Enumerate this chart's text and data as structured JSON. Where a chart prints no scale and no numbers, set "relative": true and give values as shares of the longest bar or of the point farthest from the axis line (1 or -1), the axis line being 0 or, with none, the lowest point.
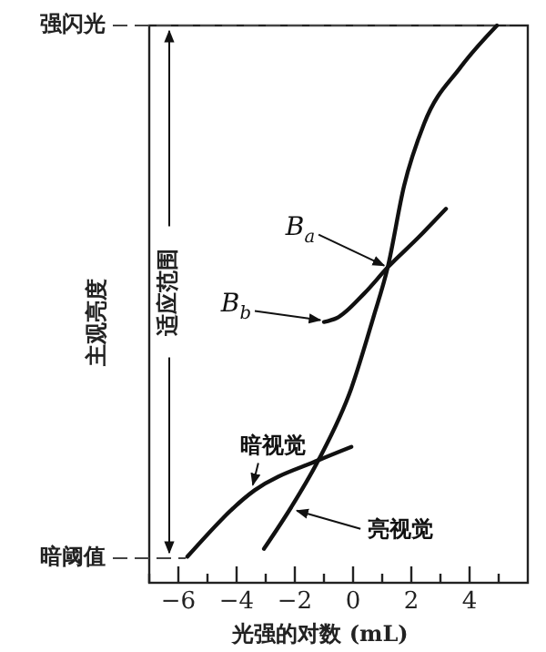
{
  "chart_data": {
    "type": "line",
    "relative": true,
    "xlabel": "光强的对数 (mL)",
    "ylabel": "主观亮度",
    "tick_labels": "x",
    "xlim": [
      -7,
      6
    ],
    "xticks": [
      {
        "value": -7,
        "label": null
      },
      -6,
      {
        "value": -5,
        "label": null
      },
      -4,
      {
        "value": -3,
        "label": null
      },
      -2,
      {
        "value": -1,
        "label": null
      },
      0,
      {
        "value": 1,
        "label": null
      },
      2,
      {
        "value": 3,
        "label": null
      },
      4,
      {
        "value": 5,
        "label": null
      }
    ],
    "series": [
      {
        "name": "亮视觉",
        "color": "#111111",
        "x": [
          -3.06,
          -2.12,
          -1.19,
          -0.06,
          0.69,
          1.19,
          1.75,
          2.44,
          3.69,
          4.94
        ],
        "values": [
          0.061,
          0.136,
          0.22,
          0.349,
          0.475,
          0.566,
          0.712,
          0.824,
          0.925,
          1.0
        ]
      },
      {
        "color": "#111111",
        "x": [
          -1.0,
          -0.56,
          0.38,
          1.19,
          2.25,
          3.19
        ],
        "values": [
          0.468,
          0.475,
          0.519,
          0.566,
          0.62,
          0.671
        ]
      },
      {
        "name": "暗视觉",
        "color": "#111111",
        "x": [
          -5.69,
          -3.38,
          -1.19,
          -0.06
        ],
        "values": [
          0.047,
          0.166,
          0.22,
          0.244
        ]
      }
    ],
    "ref_lines": [
      {
        "axis": "y",
        "value": 1.0,
        "label": "强闪光",
        "line_style": "dashed"
      },
      {
        "axis": "y",
        "value": 0.044,
        "label": "暗阈值",
        "line_style": "dashed"
      }
    ],
    "annotations": [
      {
        "text": "B$_{a}$",
        "x": 1.19,
        "y": 0.566
      },
      {
        "text": "B$_{b}$",
        "x": -1.0,
        "y": 0.468
      },
      "适应范围"
    ]
  }
}
